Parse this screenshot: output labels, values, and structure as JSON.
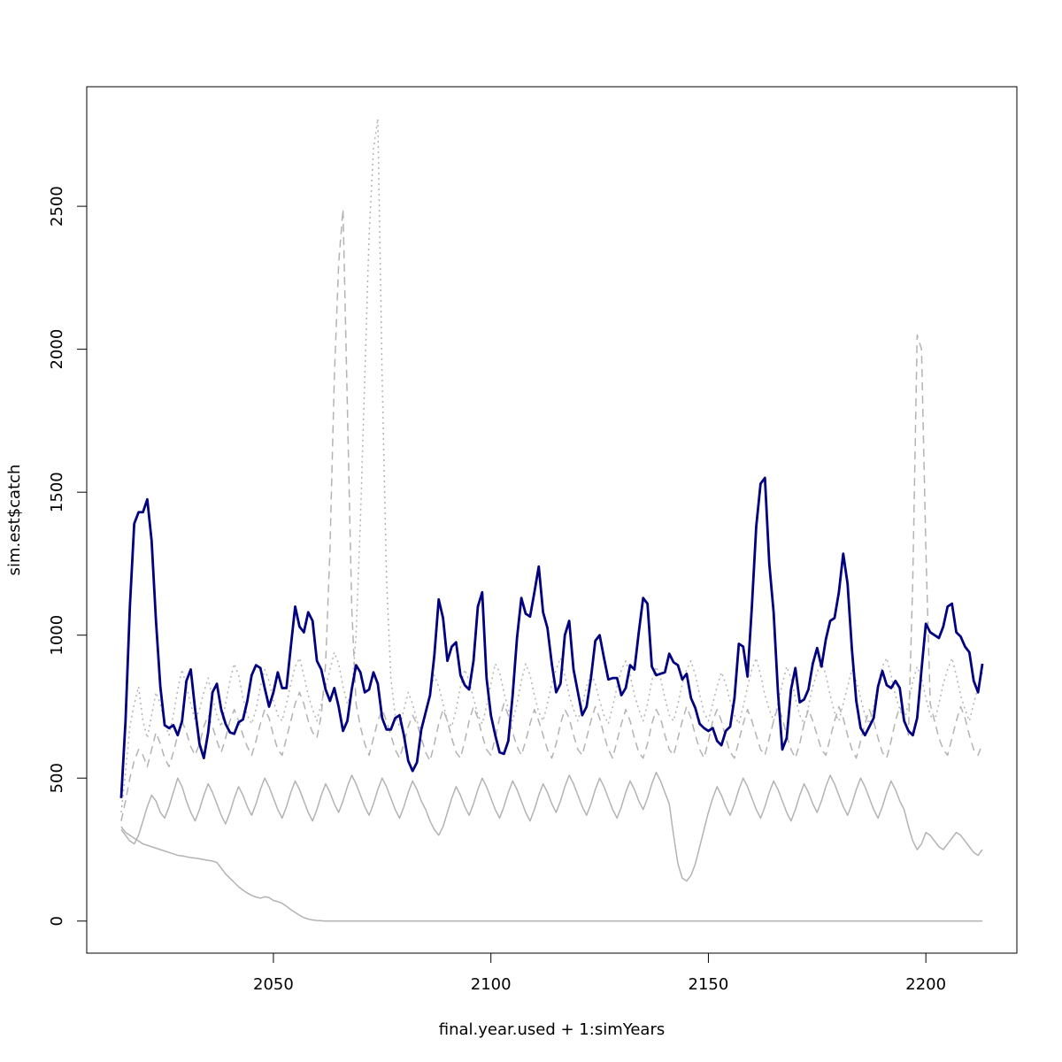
{
  "chart_data": {
    "type": "line",
    "xlabel": "final.year.used + 1:simYears",
    "ylabel": "sim.est$catch",
    "xlim": [
      2007.08,
      2220.92
    ],
    "ylim": [
      -112.2,
      2918.2
    ],
    "xticks": [
      2050,
      2100,
      2150,
      2200
    ],
    "yticks": [
      0,
      500,
      1000,
      1500,
      2000,
      2500
    ],
    "x": [
      2015,
      2016,
      2017,
      2018,
      2019,
      2020,
      2021,
      2022,
      2023,
      2024,
      2025,
      2026,
      2027,
      2028,
      2029,
      2030,
      2031,
      2032,
      2033,
      2034,
      2035,
      2036,
      2037,
      2038,
      2039,
      2040,
      2041,
      2042,
      2043,
      2044,
      2045,
      2046,
      2047,
      2048,
      2049,
      2050,
      2051,
      2052,
      2053,
      2054,
      2055,
      2056,
      2057,
      2058,
      2059,
      2060,
      2061,
      2062,
      2063,
      2064,
      2065,
      2066,
      2067,
      2068,
      2069,
      2070,
      2071,
      2072,
      2073,
      2074,
      2075,
      2076,
      2077,
      2078,
      2079,
      2080,
      2081,
      2082,
      2083,
      2084,
      2085,
      2086,
      2087,
      2088,
      2089,
      2090,
      2091,
      2092,
      2093,
      2094,
      2095,
      2096,
      2097,
      2098,
      2099,
      2100,
      2101,
      2102,
      2103,
      2104,
      2105,
      2106,
      2107,
      2108,
      2109,
      2110,
      2111,
      2112,
      2113,
      2114,
      2115,
      2116,
      2117,
      2118,
      2119,
      2120,
      2121,
      2122,
      2123,
      2124,
      2125,
      2126,
      2127,
      2128,
      2129,
      2130,
      2131,
      2132,
      2133,
      2134,
      2135,
      2136,
      2137,
      2138,
      2139,
      2140,
      2141,
      2142,
      2143,
      2144,
      2145,
      2146,
      2147,
      2148,
      2149,
      2150,
      2151,
      2152,
      2153,
      2154,
      2155,
      2156,
      2157,
      2158,
      2159,
      2160,
      2161,
      2162,
      2163,
      2164,
      2165,
      2166,
      2167,
      2168,
      2169,
      2170,
      2171,
      2172,
      2173,
      2174,
      2175,
      2176,
      2177,
      2178,
      2179,
      2180,
      2181,
      2182,
      2183,
      2184,
      2185,
      2186,
      2187,
      2188,
      2189,
      2190,
      2191,
      2192,
      2193,
      2194,
      2195,
      2196,
      2197,
      2198,
      2199,
      2200,
      2201,
      2202,
      2203,
      2204,
      2205,
      2206,
      2207,
      2208,
      2209,
      2210,
      2211,
      2212,
      2213
    ],
    "series": [
      {
        "color": "#b3b3b3",
        "dash": "dotted",
        "width": 1.5,
        "values": [
          380,
          520,
          680,
          760,
          820,
          700,
          640,
          720,
          800,
          760,
          690,
          650,
          720,
          810,
          880,
          820,
          760,
          700,
          740,
          800,
          850,
          780,
          720,
          680,
          760,
          840,
          900,
          860,
          780,
          720,
          690,
          740,
          820,
          880,
          840,
          770,
          720,
          700,
          760,
          830,
          890,
          920,
          860,
          790,
          740,
          700,
          760,
          820,
          880,
          940,
          900,
          820,
          760,
          800,
          1000,
          1400,
          1900,
          2400,
          2700,
          2806,
          1900,
          1200,
          850,
          720,
          680,
          740,
          800,
          760,
          700,
          660,
          720,
          800,
          860,
          820,
          760,
          700,
          680,
          740,
          820,
          880,
          840,
          780,
          720,
          690,
          750,
          830,
          900,
          870,
          800,
          740,
          700,
          760,
          840,
          900,
          860,
          790,
          730,
          700,
          760,
          830,
          880,
          920,
          860,
          790,
          740,
          700,
          760,
          820,
          870,
          830,
          770,
          720,
          690,
          750,
          820,
          880,
          910,
          860,
          790,
          740,
          700,
          760,
          840,
          890,
          850,
          780,
          720,
          700,
          760,
          830,
          880,
          910,
          860,
          790,
          730,
          700,
          760,
          820,
          870,
          830,
          770,
          720,
          690,
          750,
          820,
          880,
          920,
          860,
          790,
          740,
          700,
          760,
          830,
          890,
          850,
          780,
          720,
          690,
          750,
          820,
          870,
          910,
          860,
          790,
          730,
          700,
          760,
          820,
          880,
          840,
          780,
          720,
          690,
          750,
          830,
          890,
          920,
          860,
          790,
          740,
          700,
          760,
          840,
          890,
          850,
          780,
          720,
          700,
          760,
          830,
          880,
          920,
          860,
          790,
          740,
          700,
          760,
          820,
          870
        ]
      },
      {
        "color": "#b3b3b3",
        "dash": "dashed",
        "width": 1.5,
        "values": [
          350,
          420,
          500,
          560,
          600,
          580,
          540,
          600,
          660,
          620,
          570,
          540,
          590,
          650,
          700,
          660,
          610,
          580,
          620,
          680,
          720,
          680,
          630,
          590,
          640,
          700,
          740,
          700,
          650,
          610,
          580,
          630,
          690,
          740,
          710,
          650,
          600,
          580,
          640,
          700,
          760,
          800,
          760,
          700,
          660,
          640,
          720,
          900,
          1300,
          1900,
          2300,
          2490,
          1800,
          1100,
          760,
          680,
          620,
          580,
          640,
          700,
          740,
          700,
          650,
          600,
          570,
          620,
          680,
          720,
          690,
          640,
          590,
          560,
          620,
          690,
          740,
          700,
          640,
          590,
          570,
          630,
          700,
          750,
          710,
          650,
          600,
          580,
          640,
          710,
          760,
          720,
          660,
          610,
          580,
          630,
          690,
          740,
          700,
          650,
          600,
          570,
          620,
          690,
          740,
          710,
          650,
          600,
          580,
          640,
          700,
          750,
          710,
          650,
          600,
          570,
          630,
          690,
          740,
          700,
          640,
          590,
          570,
          620,
          690,
          740,
          710,
          650,
          600,
          580,
          640,
          700,
          750,
          710,
          650,
          600,
          570,
          630,
          700,
          740,
          700,
          640,
          590,
          570,
          630,
          690,
          740,
          700,
          650,
          600,
          580,
          640,
          700,
          750,
          710,
          650,
          600,
          570,
          620,
          690,
          740,
          700,
          650,
          600,
          580,
          640,
          700,
          750,
          710,
          650,
          600,
          570,
          630,
          690,
          740,
          700,
          640,
          590,
          570,
          630,
          700,
          750,
          710,
          650,
          1200,
          2050,
          2000,
          1300,
          760,
          700,
          640,
          600,
          580,
          640,
          700,
          750,
          710,
          650,
          600,
          580,
          620
        ]
      },
      {
        "color": "#b3b3b3",
        "dash": "solid",
        "width": 1.5,
        "values": [
          320,
          300,
          280,
          270,
          300,
          350,
          400,
          440,
          420,
          380,
          360,
          400,
          450,
          500,
          470,
          420,
          380,
          350,
          390,
          440,
          480,
          450,
          410,
          370,
          340,
          380,
          430,
          470,
          440,
          400,
          370,
          410,
          460,
          500,
          470,
          430,
          390,
          360,
          400,
          450,
          490,
          460,
          420,
          380,
          350,
          390,
          440,
          480,
          450,
          410,
          380,
          420,
          470,
          510,
          480,
          440,
          400,
          370,
          410,
          460,
          500,
          470,
          430,
          390,
          360,
          400,
          450,
          490,
          460,
          420,
          390,
          350,
          320,
          300,
          330,
          380,
          430,
          470,
          440,
          400,
          370,
          410,
          460,
          500,
          470,
          430,
          390,
          360,
          400,
          450,
          490,
          460,
          420,
          380,
          350,
          390,
          440,
          480,
          450,
          410,
          380,
          420,
          470,
          510,
          480,
          440,
          400,
          370,
          410,
          460,
          500,
          470,
          430,
          390,
          360,
          400,
          450,
          490,
          460,
          420,
          390,
          430,
          480,
          520,
          490,
          450,
          410,
          300,
          200,
          150,
          140,
          160,
          200,
          260,
          320,
          380,
          430,
          470,
          440,
          400,
          370,
          410,
          460,
          500,
          470,
          430,
          390,
          360,
          400,
          450,
          490,
          460,
          420,
          380,
          350,
          390,
          440,
          480,
          450,
          410,
          380,
          420,
          470,
          510,
          480,
          440,
          400,
          370,
          410,
          460,
          500,
          470,
          430,
          390,
          360,
          400,
          450,
          490,
          460,
          420,
          390,
          330,
          280,
          250,
          270,
          310,
          300,
          280,
          260,
          250,
          270,
          290,
          310,
          300,
          280,
          260,
          240,
          230,
          250
        ]
      },
      {
        "color": "#b3b3b3",
        "dash": "solid",
        "width": 1.5,
        "values": [
          330,
          310,
          300,
          290,
          280,
          270,
          265,
          260,
          255,
          250,
          245,
          240,
          235,
          230,
          228,
          225,
          222,
          220,
          218,
          215,
          212,
          210,
          205,
          185,
          165,
          150,
          135,
          120,
          108,
          98,
          90,
          84,
          80,
          85,
          82,
          72,
          68,
          62,
          52,
          40,
          30,
          20,
          12,
          7,
          4,
          2,
          1,
          0,
          0,
          0,
          0,
          0,
          0,
          0,
          0,
          0,
          0,
          0,
          0,
          0,
          0,
          0,
          0,
          0,
          0,
          0,
          0,
          0,
          0,
          0,
          0,
          0,
          0,
          0,
          0,
          0,
          0,
          0,
          0,
          0,
          0,
          0,
          0,
          0,
          0,
          0,
          0,
          0,
          0,
          0,
          0,
          0,
          0,
          0,
          0,
          0,
          0,
          0,
          0,
          0,
          0,
          0,
          0,
          0,
          0,
          0,
          0,
          0,
          0,
          0,
          0,
          0,
          0,
          0,
          0,
          0,
          0,
          0,
          0,
          0,
          0,
          0,
          0,
          0,
          0,
          0,
          0,
          0,
          0,
          0,
          0,
          0,
          0,
          0,
          0,
          0,
          0,
          0,
          0,
          0,
          0,
          0,
          0,
          0,
          0,
          0,
          0,
          0,
          0,
          0,
          0,
          0,
          0,
          0,
          0,
          0,
          0,
          0,
          0,
          0,
          0,
          0,
          0,
          0,
          0,
          0,
          0,
          0,
          0,
          0,
          0,
          0,
          0,
          0,
          0,
          0,
          0,
          0,
          0,
          0,
          0,
          0,
          0,
          0,
          0,
          0,
          0,
          0,
          0,
          0,
          0,
          0,
          0,
          0,
          0,
          0,
          0,
          0,
          0
        ]
      },
      {
        "color": "#000080",
        "dash": "solid",
        "width": 2.8,
        "values": [
          430,
          700,
          1100,
          1390,
          1430,
          1430,
          1475,
          1330,
          1050,
          820,
          685,
          675,
          685,
          650,
          700,
          840,
          880,
          740,
          620,
          570,
          660,
          800,
          830,
          740,
          690,
          660,
          655,
          695,
          705,
          770,
          860,
          895,
          885,
          815,
          750,
          800,
          870,
          815,
          815,
          960,
          1100,
          1030,
          1010,
          1080,
          1050,
          910,
          880,
          810,
          770,
          815,
          750,
          665,
          700,
          810,
          895,
          870,
          800,
          810,
          870,
          830,
          710,
          670,
          670,
          710,
          720,
          650,
          560,
          525,
          555,
          670,
          730,
          790,
          930,
          1125,
          1060,
          910,
          960,
          975,
          860,
          825,
          810,
          910,
          1100,
          1150,
          850,
          720,
          650,
          590,
          585,
          630,
          790,
          990,
          1130,
          1075,
          1065,
          1150,
          1240,
          1080,
          1025,
          900,
          800,
          830,
          1000,
          1050,
          880,
          800,
          720,
          750,
          850,
          980,
          1000,
          920,
          845,
          850,
          850,
          790,
          815,
          895,
          880,
          1010,
          1130,
          1110,
          890,
          860,
          865,
          870,
          935,
          905,
          895,
          845,
          865,
          780,
          745,
          690,
          675,
          665,
          675,
          630,
          615,
          665,
          680,
          780,
          970,
          960,
          855,
          1100,
          1380,
          1530,
          1550,
          1250,
          1080,
          800,
          600,
          640,
          810,
          885,
          765,
          775,
          810,
          900,
          955,
          890,
          985,
          1050,
          1060,
          1150,
          1285,
          1180,
          950,
          770,
          675,
          650,
          680,
          710,
          820,
          875,
          825,
          815,
          840,
          815,
          700,
          665,
          650,
          710,
          880,
          1040,
          1010,
          1000,
          990,
          1030,
          1100,
          1110,
          1010,
          995,
          960,
          940,
          840,
          800,
          900
        ]
      }
    ]
  }
}
